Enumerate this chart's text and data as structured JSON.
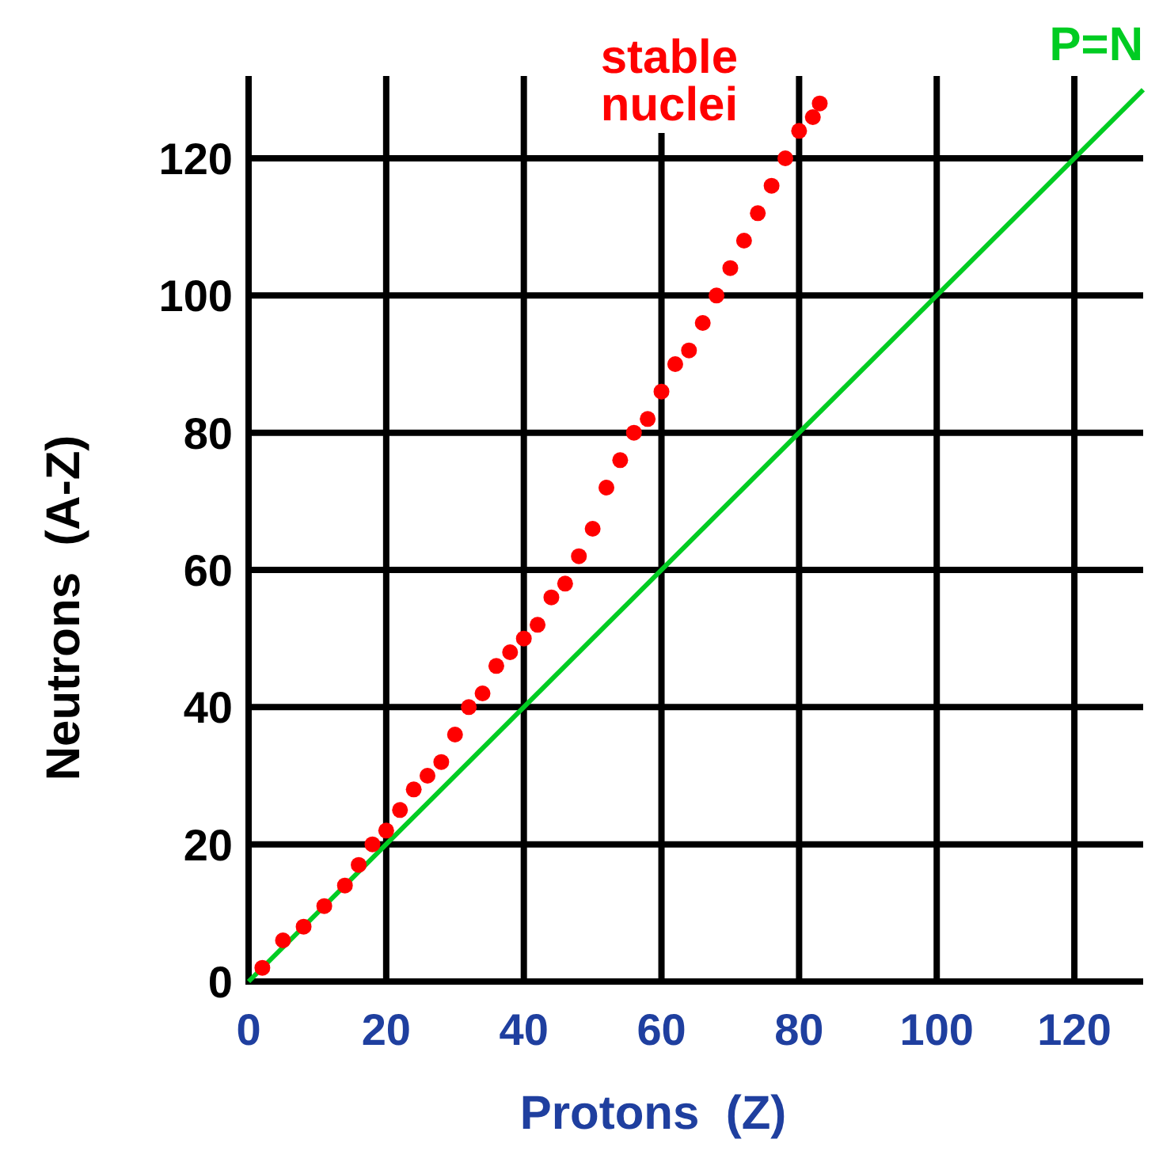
{
  "chart_data": {
    "type": "scatter",
    "xlabel": "Protons  (Z)",
    "ylabel": "Neutrons  (A-Z)",
    "xlim": [
      0,
      130
    ],
    "ylim": [
      0,
      132
    ],
    "xticks": [
      0,
      20,
      40,
      60,
      80,
      100,
      120
    ],
    "yticks": [
      0,
      20,
      40,
      60,
      80,
      100,
      120
    ],
    "grid": true,
    "marker": "circle",
    "series": [
      {
        "name": "stable nuclei",
        "color": "#ff0000",
        "x": [
          2,
          5,
          8,
          11,
          14,
          16,
          18,
          20,
          22,
          24,
          26,
          28,
          30,
          32,
          34,
          36,
          38,
          40,
          42,
          44,
          46,
          48,
          50,
          52,
          54,
          56,
          58,
          60,
          62,
          64,
          66,
          68,
          70,
          72,
          74,
          76,
          78,
          80,
          82,
          83
        ],
        "values": [
          2,
          6,
          8,
          11,
          14,
          17,
          20,
          22,
          25,
          28,
          30,
          32,
          36,
          40,
          42,
          46,
          48,
          50,
          52,
          56,
          58,
          62,
          66,
          72,
          76,
          80,
          82,
          86,
          90,
          92,
          96,
          100,
          104,
          108,
          112,
          116,
          120,
          124,
          126,
          128
        ]
      },
      {
        "name": "P=N",
        "color": "#00cc22",
        "type": "line",
        "marker": "none",
        "x": [
          0,
          130
        ],
        "values": [
          0,
          130
        ]
      }
    ]
  }
}
